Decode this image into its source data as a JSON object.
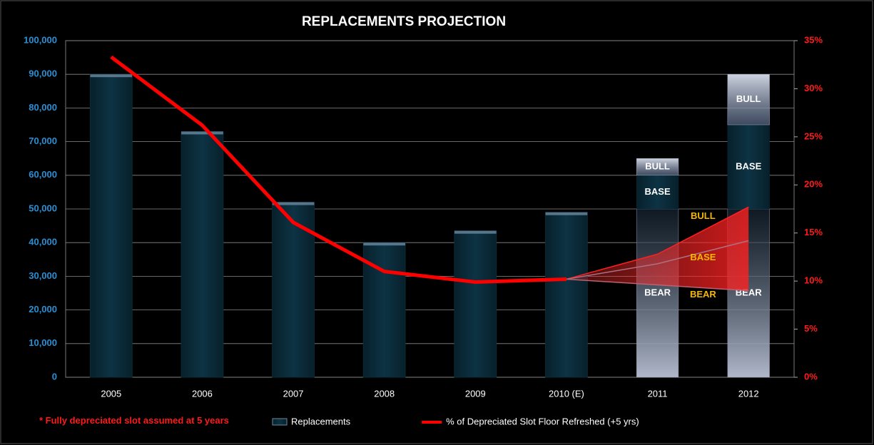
{
  "chart_data": {
    "type": "bar",
    "title": "REPLACEMENTS PROJECTION",
    "note": "* Fully depreciated slot assumed at 5 years",
    "categories": [
      "2005",
      "2006",
      "2007",
      "2008",
      "2009",
      "2010 (E)",
      "2011",
      "2012"
    ],
    "ylim": [
      0,
      100000
    ],
    "yticks": [
      0,
      {
        "value": 10000,
        "label": "10,000"
      },
      {
        "value": 20000,
        "label": "20,000"
      },
      {
        "value": 30000,
        "label": "30,000"
      },
      {
        "value": 40000,
        "label": "40,000"
      },
      {
        "value": 50000,
        "label": "50,000"
      },
      {
        "value": 60000,
        "label": "60,000"
      },
      {
        "value": 70000,
        "label": "70,000"
      },
      {
        "value": 80000,
        "label": "80,000"
      },
      {
        "value": 90000,
        "label": "90,000"
      },
      {
        "value": 100000,
        "label": "100,000"
      }
    ],
    "y2lim": [
      0,
      35
    ],
    "y2ticks": [
      {
        "value": 0,
        "label": "0%"
      },
      {
        "value": 5,
        "label": "5%"
      },
      {
        "value": 10,
        "label": "10%"
      },
      {
        "value": 15,
        "label": "15%"
      },
      {
        "value": 20,
        "label": "20%"
      },
      {
        "value": 25,
        "label": "25%"
      },
      {
        "value": 30,
        "label": "30%"
      },
      {
        "value": 35,
        "label": "35%"
      }
    ],
    "grid": true,
    "series": [
      {
        "name": "Replacements",
        "type": "bar",
        "color": "#0b2c3a",
        "values": [
          90000,
          73000,
          52000,
          40000,
          43500,
          49000,
          null,
          null
        ]
      },
      {
        "name": "% of Depreciated Slot Floor Refreshed (+5 yrs)",
        "type": "line",
        "axis": "y2",
        "color": "#ff0000",
        "values": [
          33.3,
          26.2,
          16.1,
          11.0,
          9.9,
          10.2,
          null,
          null
        ]
      }
    ],
    "scenario_bars": [
      {
        "name": "BEAR",
        "color": "#8a93a8",
        "values": [
          null,
          null,
          null,
          null,
          null,
          null,
          50000,
          50000
        ]
      },
      {
        "name": "BASE",
        "color": "#0b2c3a",
        "values": [
          null,
          null,
          null,
          null,
          null,
          null,
          10000,
          25000
        ]
      },
      {
        "name": "BULL",
        "color": "#9aa6c0",
        "values": [
          null,
          null,
          null,
          null,
          null,
          null,
          5000,
          15000
        ]
      }
    ],
    "scenario_lines": [
      {
        "name": "BULL",
        "axis": "y2",
        "color": "#ff2020",
        "values": [
          null,
          null,
          null,
          null,
          null,
          10.2,
          12.8,
          17.7
        ]
      },
      {
        "name": "BASE",
        "axis": "y2",
        "color": "#b07080",
        "values": [
          null,
          null,
          null,
          null,
          null,
          10.2,
          11.8,
          14.2
        ]
      },
      {
        "name": "BEAR",
        "axis": "y2",
        "color": "#c06070",
        "values": [
          null,
          null,
          null,
          null,
          null,
          10.2,
          9.6,
          9.0
        ]
      }
    ],
    "scenario_label_color": "#f5b800"
  }
}
